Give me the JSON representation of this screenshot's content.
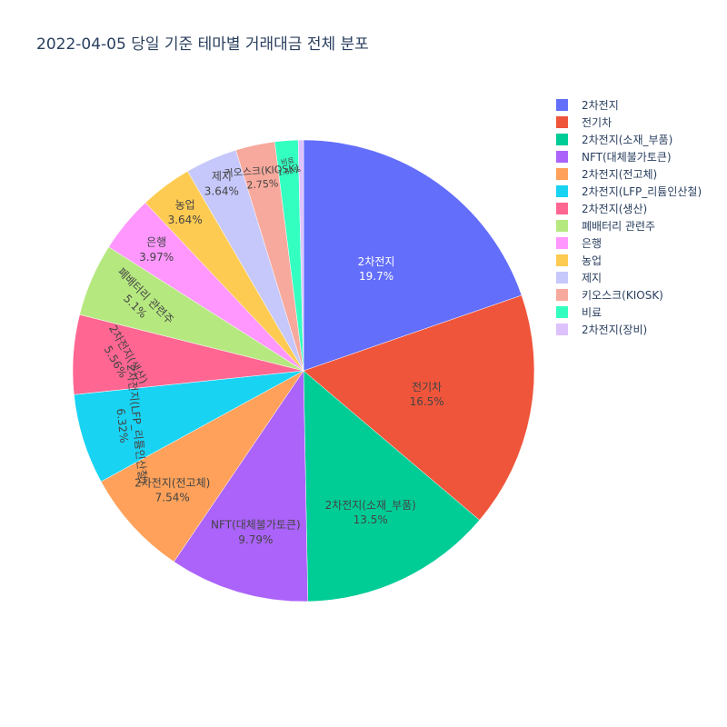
{
  "chart_data": {
    "type": "pie",
    "title": "2022-04-05 당일 기준 테마별 거래대금 전체 분포",
    "categories": [
      "2차전지",
      "전기차",
      "2차전지(소재_부품)",
      "NFT(대체불가토큰)",
      "2차전지(전고체)",
      "2차전지(LFP_리튬인산철)",
      "2차전지(생산)",
      "폐배터리 관련주",
      "은행",
      "농업",
      "제지",
      "키오스크(KIOSK)",
      "비료",
      "2차전지(장비)"
    ],
    "values": [
      19.7,
      16.5,
      13.5,
      9.79,
      7.54,
      6.32,
      5.56,
      5.1,
      3.97,
      3.64,
      3.64,
      2.75,
      1.62,
      0.37
    ],
    "percent_labels": [
      "19.7%",
      "16.5%",
      "13.5%",
      "9.79%",
      "7.54%",
      "6.32%",
      "5.56%",
      "5.1%",
      "3.97%",
      "3.64%",
      "3.64%",
      "2.75%",
      "1.62%",
      ""
    ],
    "colors": [
      "#636efa",
      "#EF553B",
      "#00cc96",
      "#ab63fa",
      "#FFA15A",
      "#19d3f3",
      "#FF6692",
      "#B6E880",
      "#FF97FF",
      "#FECB52",
      "#c6c8fb",
      "#f7a99d",
      "#33ffc0",
      "#ddc1fc"
    ],
    "legend_position": "right",
    "grid": false
  }
}
